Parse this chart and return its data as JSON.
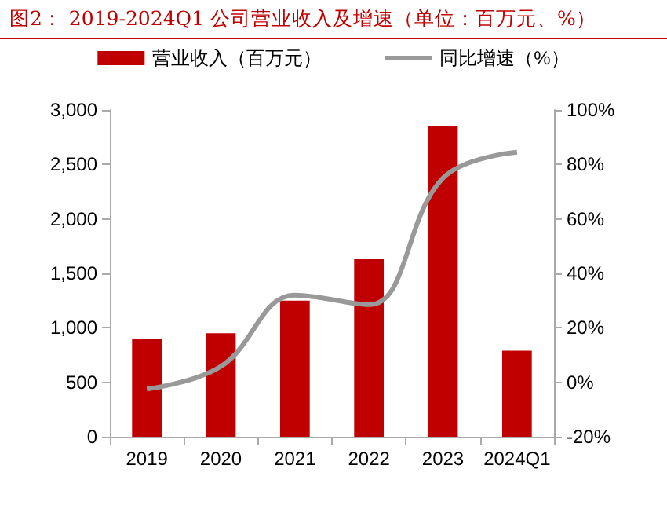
{
  "chart_data": {
    "type": "bar",
    "title": "图2：  2019-2024Q1 公司营业收入及增速（单位：百万元、%）",
    "categories": [
      "2019",
      "2020",
      "2021",
      "2022",
      "2023",
      "2024Q1"
    ],
    "series": [
      {
        "name": "营业收入（百万元）",
        "color": "#c00000",
        "values": [
          900,
          950,
          1250,
          1630,
          2850,
          790
        ]
      },
      {
        "name": "同比增速（%）",
        "type": "line",
        "axis": "y2",
        "color": "#999999",
        "values": [
          -2.5,
          5.8,
          32,
          28.5,
          75,
          84.5
        ]
      }
    ],
    "ylim": [
      0,
      3000
    ],
    "yticks": [
      {
        "value": 0,
        "label": "0"
      },
      {
        "value": 500,
        "label": "500"
      },
      {
        "value": 1000,
        "label": "1,000"
      },
      {
        "value": 1500,
        "label": "1,500"
      },
      {
        "value": 2000,
        "label": "2,000"
      },
      {
        "value": 2500,
        "label": "2,500"
      },
      {
        "value": 3000,
        "label": "3,000"
      }
    ],
    "y2lim": [
      -20,
      100
    ],
    "y2ticks": [
      {
        "value": -20,
        "label": "-20%"
      },
      {
        "value": 0,
        "label": "0%"
      },
      {
        "value": 20,
        "label": "20%"
      },
      {
        "value": 40,
        "label": "40%"
      },
      {
        "value": 60,
        "label": "60%"
      },
      {
        "value": 80,
        "label": "80%"
      },
      {
        "value": 100,
        "label": "100%"
      }
    ],
    "grid": false,
    "legend": "top",
    "marker": "none",
    "line_style": "solid"
  }
}
